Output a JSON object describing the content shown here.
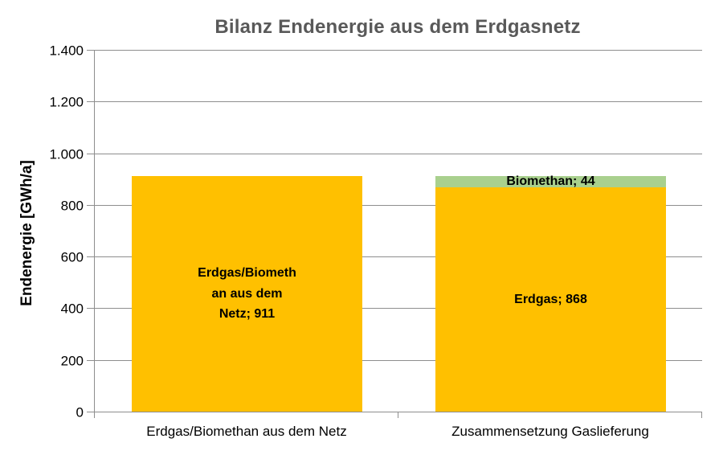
{
  "chart_data": {
    "type": "bar",
    "subtype": "stacked-column",
    "title": "Bilanz Endenergie aus dem Erdgasnetz",
    "ylabel": "Endenergie [GWh/a]",
    "xlabel": "",
    "ylim": [
      0,
      1400
    ],
    "ytick_step": 200,
    "ytick_labels": [
      "0",
      "200",
      "400",
      "600",
      "800",
      "1.000",
      "1.200",
      "1.400"
    ],
    "grid": true,
    "legend": "none",
    "categories": [
      "Erdgas/Biomethan aus dem Netz",
      "Zusammensetzung Gaslieferung"
    ],
    "series": [
      {
        "name": "Erdgas/Biomethan aus dem Netz",
        "values": [
          911,
          0
        ]
      },
      {
        "name": "Erdgas",
        "values": [
          0,
          868
        ]
      },
      {
        "name": "Biomethan",
        "values": [
          0,
          44
        ]
      }
    ],
    "bars": [
      {
        "category": "Erdgas/Biomethan aus dem Netz",
        "segments": [
          {
            "value": 911,
            "color_key": "yellow",
            "label_lines": [
              "Erdgas/Biometh",
              "an aus dem",
              "Netz; 911"
            ]
          }
        ]
      },
      {
        "category": "Zusammensetzung Gaslieferung",
        "segments": [
          {
            "value": 868,
            "color_key": "yellow",
            "label_lines": [
              "Erdgas; 868"
            ]
          },
          {
            "value": 44,
            "color_key": "green",
            "label_lines": [
              "Biomethan; 44"
            ]
          }
        ]
      }
    ],
    "colors": {
      "yellow": "#FFC000",
      "green": "#A9D08E",
      "grid": "#8E8E8E",
      "title": "#595959",
      "text": "#000000"
    }
  }
}
